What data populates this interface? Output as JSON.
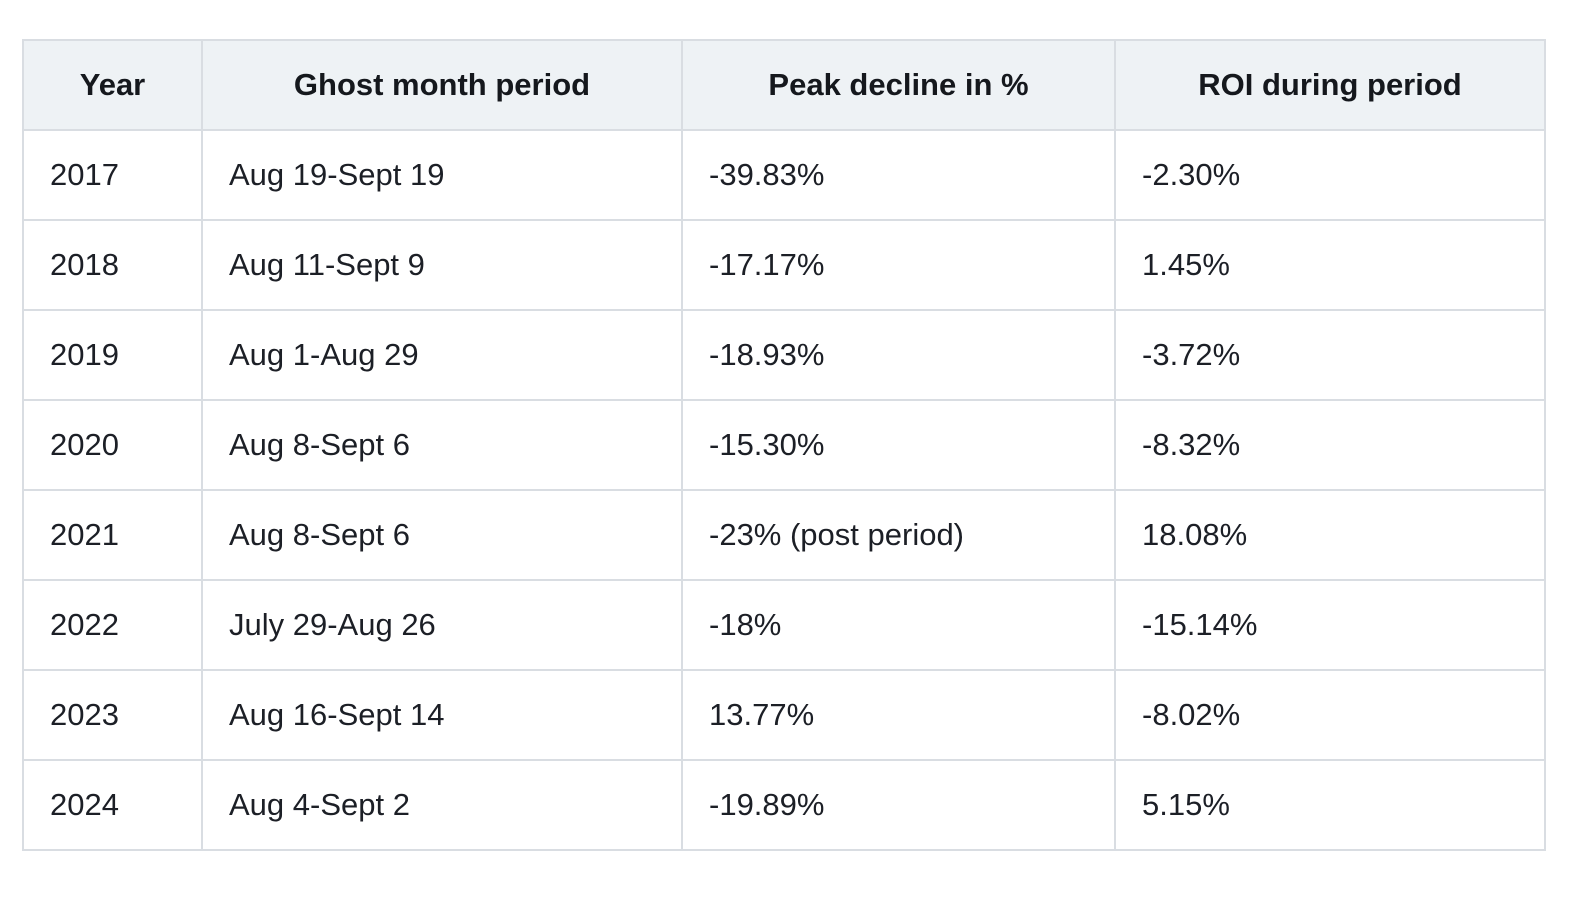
{
  "table": {
    "headers": [
      "Year",
      "Ghost month period",
      "Peak decline in %",
      "ROI during period"
    ],
    "rows": [
      [
        "2017",
        "Aug 19-Sept 19",
        "-39.83%",
        "-2.30%"
      ],
      [
        "2018",
        "Aug 11-Sept 9",
        "-17.17%",
        "1.45%"
      ],
      [
        "2019",
        "Aug 1-Aug 29",
        "-18.93%",
        "-3.72%"
      ],
      [
        "2020",
        "Aug 8-Sept 6",
        "-15.30%",
        "-8.32%"
      ],
      [
        "2021",
        "Aug 8-Sept 6",
        "-23% (post period)",
        "18.08%"
      ],
      [
        "2022",
        "July 29-Aug 26",
        "-18%",
        "-15.14%"
      ],
      [
        "2023",
        "Aug 16-Sept 14",
        "13.77%",
        "-8.02%"
      ],
      [
        "2024",
        "Aug 4-Sept 2",
        "-19.89%",
        "5.15%"
      ]
    ]
  },
  "colors": {
    "header_background": "#eef2f5",
    "border": "#d9dde2",
    "text": "#1c1f26"
  }
}
